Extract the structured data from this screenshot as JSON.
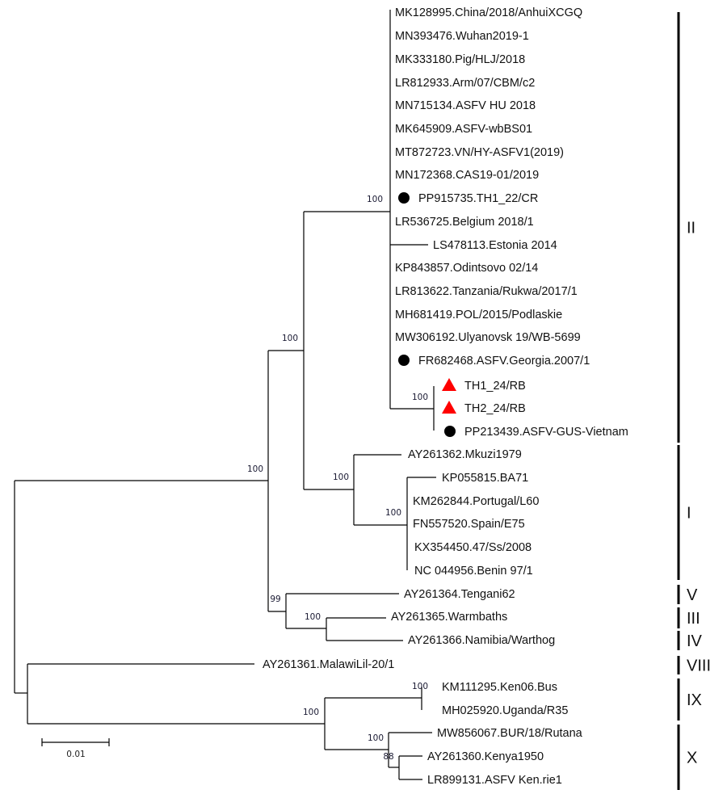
{
  "taxa": [
    {
      "label": "MK128995.China/2018/AnhuiXCGQ",
      "marker": ""
    },
    {
      "label": "MN393476.Wuhan2019-1",
      "marker": ""
    },
    {
      "label": "MK333180.Pig/HLJ/2018",
      "marker": ""
    },
    {
      "label": "LR812933.Arm/07/CBM/c2",
      "marker": ""
    },
    {
      "label": "MN715134.ASFV HU 2018",
      "marker": ""
    },
    {
      "label": "MK645909.ASFV-wbBS01",
      "marker": ""
    },
    {
      "label": "MT872723.VN/HY-ASFV1(2019)",
      "marker": ""
    },
    {
      "label": "MN172368.CAS19-01/2019",
      "marker": ""
    },
    {
      "label": "PP915735.TH1_22/CR",
      "marker": "circle"
    },
    {
      "label": "LR536725.Belgium 2018/1",
      "marker": ""
    },
    {
      "label": "LS478113.Estonia 2014",
      "marker": ""
    },
    {
      "label": "KP843857.Odintsovo 02/14",
      "marker": ""
    },
    {
      "label": "LR813622.Tanzania/Rukwa/2017/1",
      "marker": ""
    },
    {
      "label": "MH681419.POL/2015/Podlaskie",
      "marker": ""
    },
    {
      "label": "MW306192.Ulyanovsk 19/WB-5699",
      "marker": ""
    },
    {
      "label": "FR682468.ASFV.Georgia.2007/1",
      "marker": "circle"
    },
    {
      "label": "TH1_24/RB",
      "marker": "triangle"
    },
    {
      "label": "TH2_24/RB",
      "marker": "triangle"
    },
    {
      "label": "PP213439.ASFV-GUS-Vietnam",
      "marker": "circle"
    },
    {
      "label": "AY261362.Mkuzi1979",
      "marker": ""
    },
    {
      "label": "KP055815.BA71",
      "marker": ""
    },
    {
      "label": "KM262844.Portugal/L60",
      "marker": ""
    },
    {
      "label": "FN557520.Spain/E75",
      "marker": ""
    },
    {
      "label": "KX354450.47/Ss/2008",
      "marker": ""
    },
    {
      "label": "NC 044956.Benin 97/1",
      "marker": ""
    },
    {
      "label": "AY261364.Tengani62",
      "marker": ""
    },
    {
      "label": "AY261365.Warmbaths",
      "marker": ""
    },
    {
      "label": "AY261366.Namibia/Warthog",
      "marker": ""
    },
    {
      "label": "AY261361.MalawiLil-20/1",
      "marker": ""
    },
    {
      "label": "KM111295.Ken06.Bus",
      "marker": ""
    },
    {
      "label": "MH025920.Uganda/R35",
      "marker": ""
    },
    {
      "label": "MW856067.BUR/18/Rutana",
      "marker": ""
    },
    {
      "label": "AY261360.Kenya1950",
      "marker": ""
    },
    {
      "label": "LR899131.ASFV Ken.rie1",
      "marker": ""
    }
  ],
  "bootstrap": [
    "100",
    "100",
    "100",
    "100",
    "100",
    "99",
    "100",
    "100",
    "100",
    "100",
    "100",
    "88"
  ],
  "genotypes": [
    "II",
    "I",
    "V",
    "III",
    "IV",
    "VIII",
    "IX",
    "X"
  ],
  "scale_bar": "0.01",
  "colors": {
    "triangle": "#ff0000",
    "circle": "#000000",
    "line": "#000000"
  }
}
